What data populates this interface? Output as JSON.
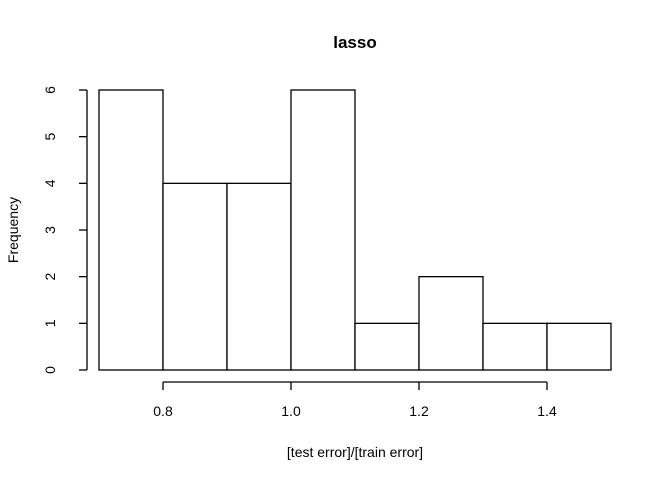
{
  "chart_data": {
    "type": "bar",
    "subtype": "histogram",
    "title": "lasso",
    "xlabel": "[test error]/[train error]",
    "ylabel": "Frequency",
    "bins": [
      {
        "start": 0.7,
        "end": 0.8,
        "count": 6
      },
      {
        "start": 0.8,
        "end": 0.9,
        "count": 4
      },
      {
        "start": 0.9,
        "end": 1.0,
        "count": 4
      },
      {
        "start": 1.0,
        "end": 1.1,
        "count": 6
      },
      {
        "start": 1.1,
        "end": 1.2,
        "count": 1
      },
      {
        "start": 1.2,
        "end": 1.3,
        "count": 2
      },
      {
        "start": 1.3,
        "end": 1.4,
        "count": 1
      },
      {
        "start": 1.4,
        "end": 1.5,
        "count": 1
      }
    ],
    "x_ticks": [
      0.8,
      1.0,
      1.2,
      1.4
    ],
    "x_tick_labels": [
      "0.8",
      "1.0",
      "1.2",
      "1.4"
    ],
    "y_ticks": [
      0,
      1,
      2,
      3,
      4,
      5,
      6
    ],
    "y_tick_labels": [
      "0",
      "1",
      "2",
      "3",
      "4",
      "5",
      "6"
    ],
    "xlim": [
      0.7,
      1.5
    ],
    "ylim": [
      0,
      6
    ],
    "grid": false,
    "bar_fill": "#ffffff",
    "bar_stroke": "#000000"
  }
}
